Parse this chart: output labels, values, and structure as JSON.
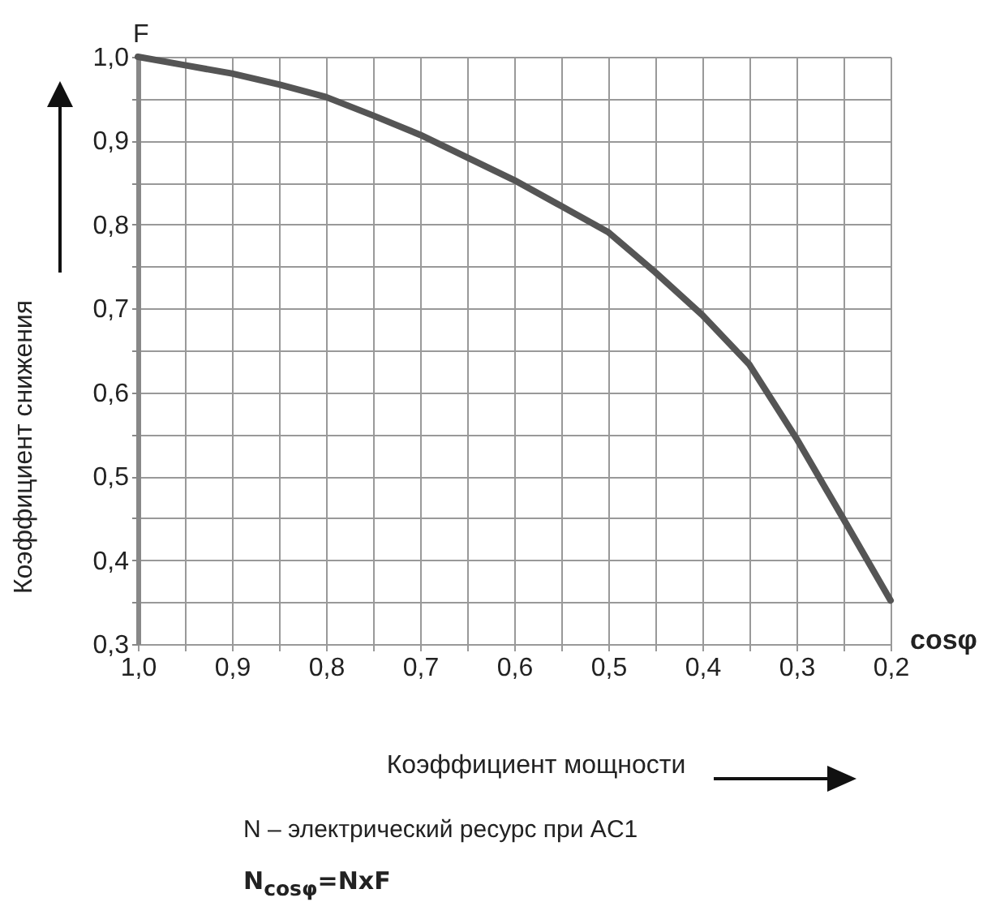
{
  "chart_data": {
    "type": "line",
    "xlabel": "Коэффициент мощности",
    "ylabel": "Коэффициент снижения",
    "annotations": [
      "F",
      "cosφ",
      "N – электрический ресурс при AC1",
      "N$_{cosφ}$=NxF"
    ],
    "x": [
      1.0,
      0.95,
      0.9,
      0.85,
      0.8,
      0.75,
      0.7,
      0.65,
      0.6,
      0.55,
      0.5,
      0.45,
      0.4,
      0.35,
      0.3,
      0.25,
      0.2
    ],
    "series": [
      {
        "color": "#555555",
        "values": [
          1.0,
          0.99,
          0.98,
          0.967,
          0.952,
          0.93,
          0.907,
          0.88,
          0.853,
          0.822,
          0.791,
          0.743,
          0.692,
          0.633,
          0.545,
          0.449,
          0.352
        ]
      }
    ],
    "xlim": [
      1.0,
      0.2
    ],
    "xticks": [
      {
        "value": 1.0,
        "label": "1,0"
      },
      {
        "value": 0.95,
        "label": null
      },
      {
        "value": 0.9,
        "label": "0,9"
      },
      {
        "value": 0.85,
        "label": null
      },
      {
        "value": 0.8,
        "label": "0,8"
      },
      {
        "value": 0.75,
        "label": null
      },
      {
        "value": 0.7,
        "label": "0,7"
      },
      {
        "value": 0.65,
        "label": null
      },
      {
        "value": 0.6,
        "label": "0,6"
      },
      {
        "value": 0.55,
        "label": null
      },
      {
        "value": 0.5,
        "label": "0,5"
      },
      {
        "value": 0.45,
        "label": null
      },
      {
        "value": 0.4,
        "label": "0,4"
      },
      {
        "value": 0.35,
        "label": null
      },
      {
        "value": 0.3,
        "label": "0,3"
      },
      {
        "value": 0.25,
        "label": null
      },
      {
        "value": 0.2,
        "label": "0,2"
      }
    ],
    "ylim": [
      0.3,
      1.0
    ],
    "yticks": [
      {
        "value": 0.3,
        "label": "0,3"
      },
      {
        "value": 0.35,
        "label": null
      },
      {
        "value": 0.4,
        "label": "0,4"
      },
      {
        "value": 0.45,
        "label": null
      },
      {
        "value": 0.5,
        "label": "0,5"
      },
      {
        "value": 0.55,
        "label": null
      },
      {
        "value": 0.6,
        "label": "0,6"
      },
      {
        "value": 0.65,
        "label": null
      },
      {
        "value": 0.7,
        "label": "0,7"
      },
      {
        "value": 0.75,
        "label": null
      },
      {
        "value": 0.8,
        "label": "0,8"
      },
      {
        "value": 0.85,
        "label": null
      },
      {
        "value": 0.9,
        "label": "0,9"
      },
      {
        "value": 0.95,
        "label": null
      },
      {
        "value": 1.0,
        "label": "1,0"
      }
    ],
    "grid": true,
    "marker": "none",
    "line_style": "solid"
  }
}
